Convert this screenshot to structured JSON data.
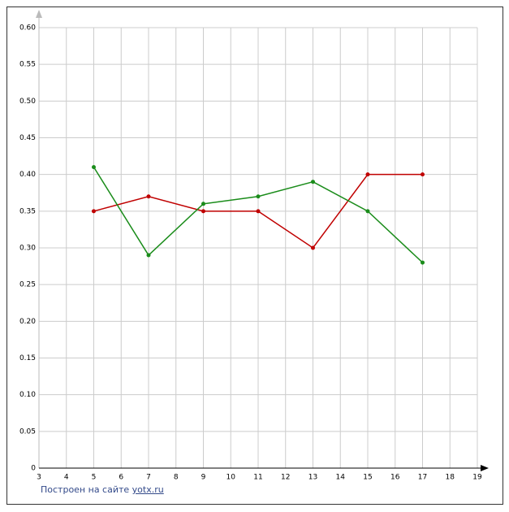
{
  "chart_data": {
    "type": "line",
    "xlim": [
      3,
      19
    ],
    "xticks": [
      3,
      4,
      5,
      6,
      7,
      8,
      9,
      10,
      11,
      12,
      13,
      14,
      15,
      16,
      17,
      18,
      19
    ],
    "ylim": [
      0,
      0.6
    ],
    "yticks": [
      0,
      0.05,
      {
        "value": 0.1,
        "label": "0.10"
      },
      0.15,
      {
        "value": 0.2,
        "label": "0.20"
      },
      0.25,
      {
        "value": 0.3,
        "label": "0.30"
      },
      0.35,
      {
        "value": 0.4,
        "label": "0.40"
      },
      0.45,
      {
        "value": 0.5,
        "label": "0.50"
      },
      0.55,
      {
        "value": 0.6,
        "label": "0.60"
      }
    ],
    "grid": true,
    "series": [
      {
        "color": "#c00000",
        "x": [
          5,
          7,
          9,
          11,
          13,
          15,
          17
        ],
        "values": [
          0.35,
          0.37,
          0.35,
          0.35,
          0.3,
          0.4,
          0.4
        ]
      },
      {
        "color": "#1a8c1a",
        "x": [
          5,
          7,
          9,
          11,
          13,
          15,
          17
        ],
        "values": [
          0.41,
          0.29,
          0.36,
          0.37,
          0.39,
          0.35,
          0.28
        ]
      }
    ]
  },
  "footer": {
    "text": "Построен на сайте",
    "link": "yotx.ru"
  }
}
